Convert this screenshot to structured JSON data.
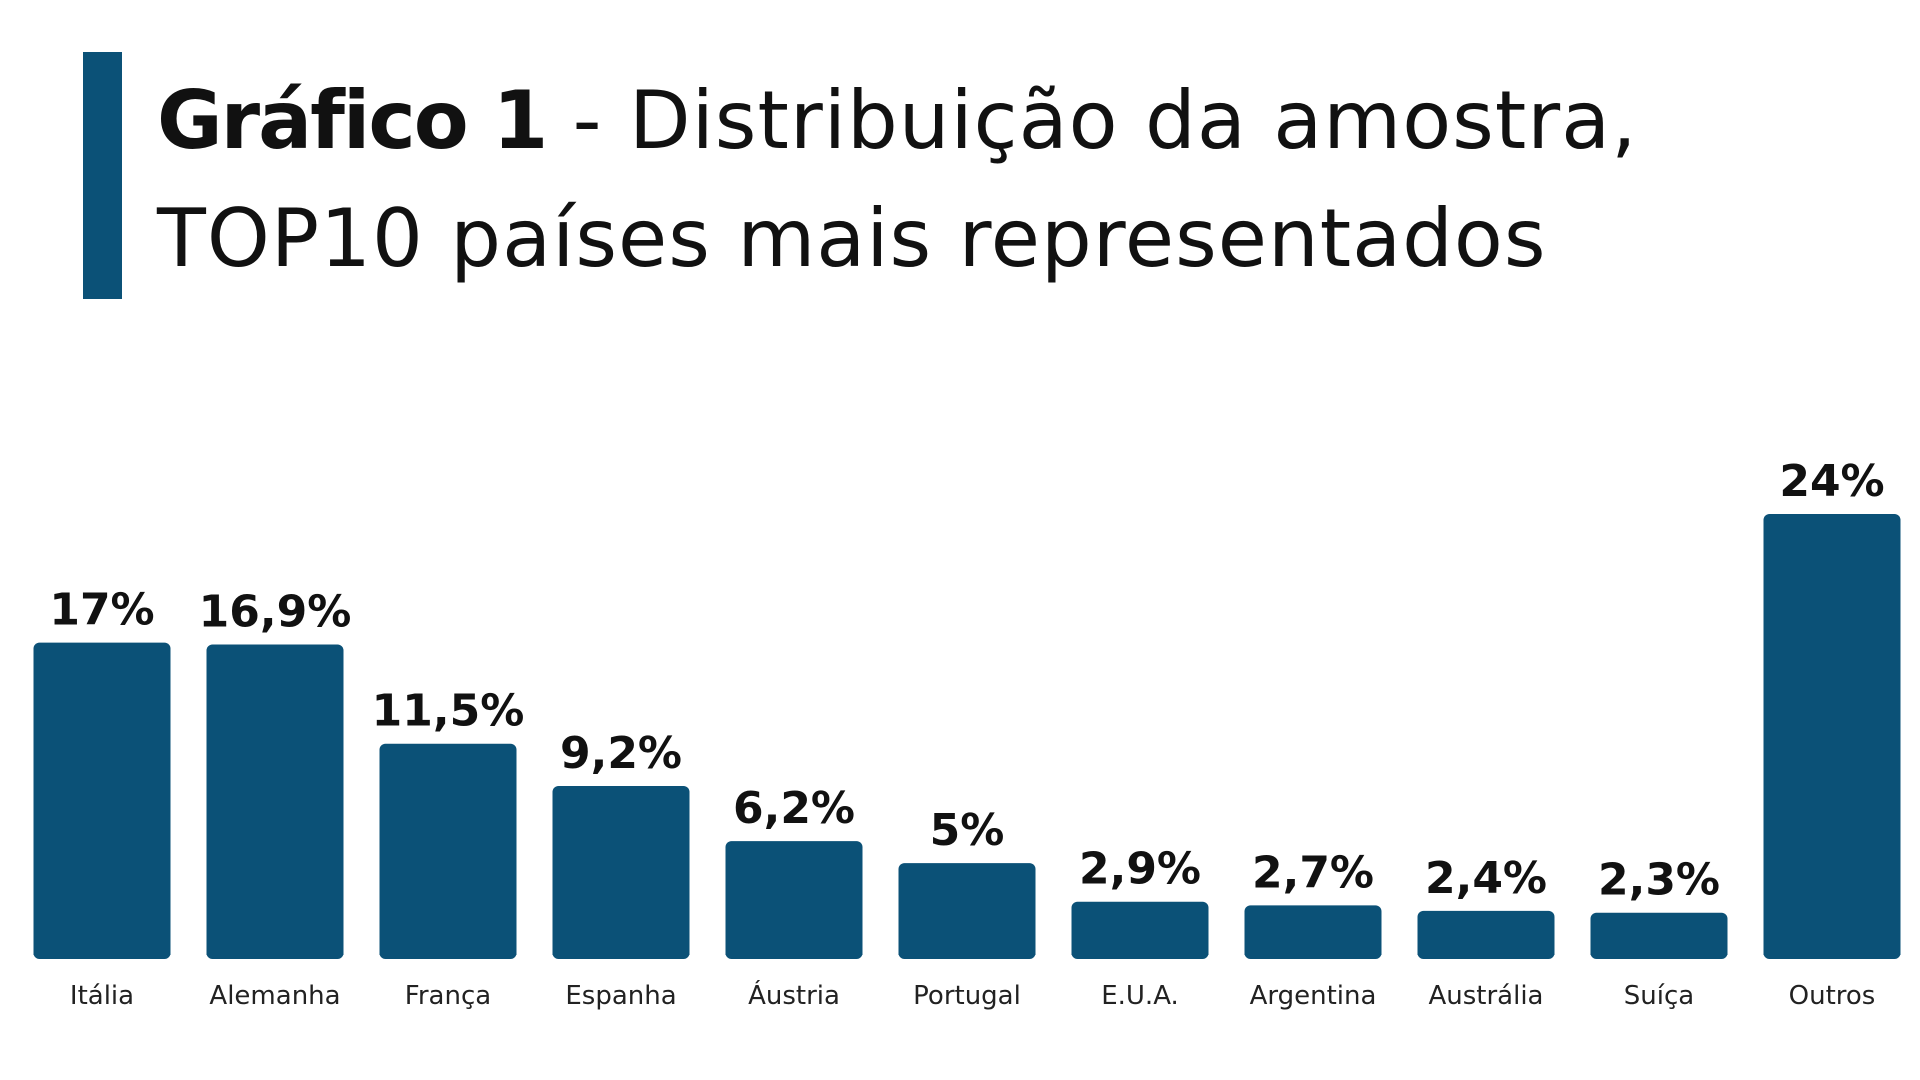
{
  "title": {
    "bold": "Gráfico 1",
    "rest_line1": " - Distribuição da amostra,",
    "line2": "TOP10 países mais representados"
  },
  "colors": {
    "accent": "#0b5177",
    "bar": "#0b5177",
    "text": "#111111"
  },
  "chart_data": {
    "type": "bar",
    "title": "Gráfico 1 - Distribuição da amostra, TOP10 países mais representados",
    "xlabel": "",
    "ylabel": "",
    "ylim": [
      0,
      24
    ],
    "grid": false,
    "categories": [
      "Itália",
      "Alemanha",
      "França",
      "Espanha",
      "Áustria",
      "Portugal",
      "E.U.A.",
      "Argentina",
      "Austrália",
      "Suíça",
      "Outros"
    ],
    "values": [
      17,
      16.9,
      11.5,
      9.2,
      6.2,
      5,
      2.9,
      2.7,
      2.4,
      2.3,
      24
    ],
    "value_labels": [
      "17%",
      "16,9%",
      "11,5%",
      "9,2%",
      "6,2%",
      "5%",
      "2,9%",
      "2,7%",
      "2,4%",
      "2,3%",
      "24%"
    ]
  }
}
